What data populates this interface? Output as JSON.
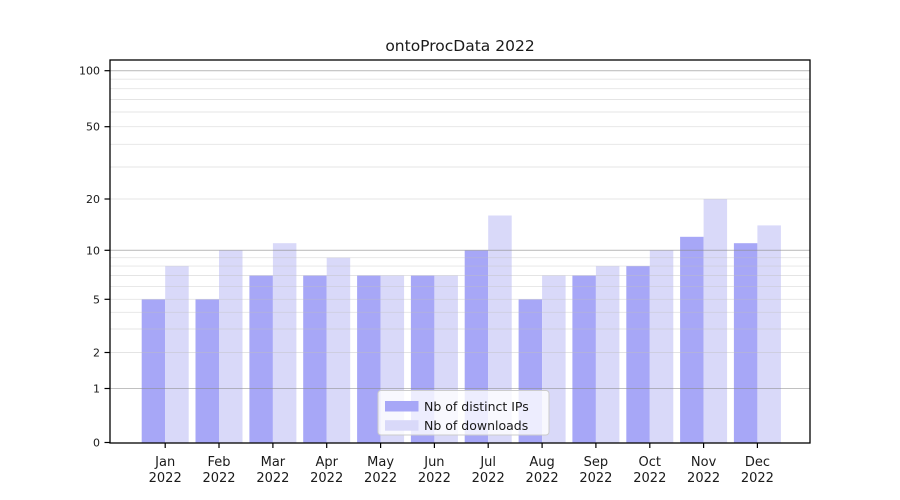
{
  "title": "ontoProcData 2022",
  "chart_data": {
    "type": "bar",
    "title": "ontoProcData 2022",
    "categories": [
      "Jan 2022",
      "Feb 2022",
      "Mar 2022",
      "Apr 2022",
      "May 2022",
      "Jun 2022",
      "Jul 2022",
      "Aug 2022",
      "Sep 2022",
      "Oct 2022",
      "Nov 2022",
      "Dec 2022"
    ],
    "x_tick_line1": [
      "Jan",
      "Feb",
      "Mar",
      "Apr",
      "May",
      "Jun",
      "Jul",
      "Aug",
      "Sep",
      "Oct",
      "Nov",
      "Dec"
    ],
    "x_tick_line2": "2022",
    "series": [
      {
        "name": "Nb of distinct IPs",
        "color": "#a7a7f7",
        "values": [
          5,
          5,
          7,
          7,
          7,
          7,
          10,
          5,
          7,
          8,
          12,
          11
        ]
      },
      {
        "name": "Nb of downloads",
        "color": "#d9d9f9",
        "values": [
          8,
          10,
          11,
          9,
          7,
          7,
          16,
          7,
          8,
          10,
          20,
          14
        ]
      }
    ],
    "y_axis": {
      "scale": "symlog",
      "tick_labels": [
        0,
        1,
        2,
        5,
        10,
        20,
        50,
        100
      ],
      "major_gridlines": [
        1,
        10,
        100
      ],
      "minor_gridlines": [
        2,
        3,
        4,
        5,
        6,
        7,
        8,
        9,
        20,
        30,
        40,
        50,
        60,
        70,
        80,
        90
      ],
      "range": [
        0,
        114
      ]
    },
    "legend": {
      "position": "lower center",
      "entries": [
        "Nb of distinct IPs",
        "Nb of downloads"
      ]
    },
    "grid": true
  },
  "colors": {
    "bar_distinct_ips": "#a7a7f7",
    "bar_downloads": "#d9d9f9",
    "gridline_major": "#c3c3c3",
    "gridline_minor": "#e8e8e8",
    "axis": "#000000",
    "text": "#1a1a1a",
    "legend_border": "#cccccc",
    "background": "#ffffff"
  }
}
